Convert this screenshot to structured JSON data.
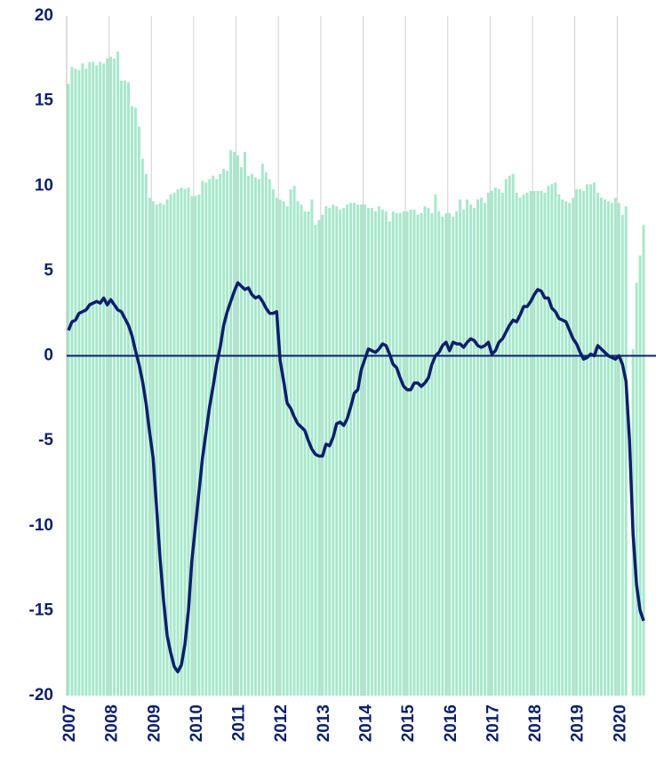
{
  "chart_data": {
    "type": "bar_line",
    "categories": [
      "2007",
      null,
      null,
      null,
      null,
      null,
      null,
      null,
      null,
      null,
      null,
      null,
      "2008",
      null,
      null,
      null,
      null,
      null,
      null,
      null,
      null,
      null,
      null,
      null,
      "2009",
      null,
      null,
      null,
      null,
      null,
      null,
      null,
      null,
      null,
      null,
      null,
      "2010",
      null,
      null,
      null,
      null,
      null,
      null,
      null,
      null,
      null,
      null,
      null,
      "2011",
      null,
      null,
      null,
      null,
      null,
      null,
      null,
      null,
      null,
      null,
      null,
      "2012",
      null,
      null,
      null,
      null,
      null,
      null,
      null,
      null,
      null,
      null,
      null,
      "2013",
      null,
      null,
      null,
      null,
      null,
      null,
      null,
      null,
      null,
      null,
      null,
      "2014",
      null,
      null,
      null,
      null,
      null,
      null,
      null,
      null,
      null,
      null,
      null,
      "2015",
      null,
      null,
      null,
      null,
      null,
      null,
      null,
      null,
      null,
      null,
      null,
      "2016",
      null,
      null,
      null,
      null,
      null,
      null,
      null,
      null,
      null,
      null,
      null,
      "2017",
      null,
      null,
      null,
      null,
      null,
      null,
      null,
      null,
      null,
      null,
      null,
      "2018",
      null,
      null,
      null,
      null,
      null,
      null,
      null,
      null,
      null,
      null,
      null,
      "2019",
      null,
      null,
      null,
      null,
      null,
      null,
      null,
      null,
      null,
      null,
      null,
      "2020",
      null,
      null,
      null,
      null,
      null,
      null,
      null
    ],
    "series": [
      {
        "type": "bar",
        "color": "#a6e8cb",
        "values": [
          16.0,
          17.0,
          16.9,
          16.8,
          17.2,
          16.9,
          17.3,
          17.3,
          17.1,
          17.3,
          17.2,
          17.5,
          17.6,
          17.5,
          17.9,
          16.2,
          16.2,
          16.1,
          14.7,
          14.6,
          13.5,
          11.6,
          10.7,
          9.3,
          9.1,
          8.9,
          9.0,
          8.9,
          9.2,
          9.5,
          9.6,
          9.8,
          9.9,
          9.8,
          9.9,
          9.4,
          9.4,
          9.5,
          10.3,
          10.2,
          10.4,
          10.6,
          10.4,
          10.7,
          11.0,
          10.9,
          12.1,
          12.0,
          11.8,
          11.1,
          12.0,
          10.6,
          10.7,
          10.5,
          10.4,
          11.3,
          10.8,
          10.4,
          9.8,
          9.3,
          9.2,
          9.1,
          8.8,
          9.8,
          10.0,
          9.1,
          8.9,
          8.5,
          8.5,
          9.2,
          7.7,
          8.0,
          8.3,
          8.8,
          8.7,
          8.9,
          8.8,
          8.6,
          8.7,
          8.9,
          9.0,
          9.0,
          8.9,
          8.9,
          8.9,
          8.7,
          8.7,
          8.5,
          8.8,
          8.6,
          8.5,
          7.9,
          8.5,
          8.4,
          8.4,
          8.5,
          8.5,
          8.6,
          8.6,
          8.3,
          8.4,
          8.8,
          8.7,
          8.4,
          9.5,
          8.5,
          8.2,
          8.4,
          8.4,
          8.2,
          8.5,
          9.2,
          8.6,
          9.2,
          8.9,
          8.7,
          9.2,
          9.3,
          9.0,
          9.6,
          9.7,
          9.9,
          9.8,
          9.6,
          10.4,
          10.6,
          10.7,
          9.6,
          9.3,
          9.5,
          9.6,
          9.7,
          9.7,
          9.7,
          9.7,
          9.6,
          10.0,
          10.1,
          10.2,
          9.5,
          9.2,
          9.1,
          9.0,
          9.3,
          9.8,
          9.8,
          9.7,
          10.1,
          10.1,
          10.2,
          9.6,
          9.3,
          9.2,
          9.1,
          9.0,
          9.3,
          9.0,
          8.3,
          8.8,
          null,
          0.4,
          4.3,
          5.9,
          7.7
        ]
      },
      {
        "type": "line",
        "color": "#0c1f6b",
        "values": [
          1.5,
          2.0,
          2.1,
          2.5,
          2.6,
          2.7,
          3.0,
          3.1,
          3.2,
          3.1,
          3.4,
          3.0,
          3.3,
          3.0,
          2.7,
          2.6,
          2.2,
          1.8,
          1.2,
          0.3,
          -0.5,
          -1.5,
          -2.8,
          -4.5,
          -6.0,
          -9.0,
          -12.0,
          -14.5,
          -16.5,
          -17.5,
          -18.3,
          -18.6,
          -18.2,
          -17.0,
          -15.0,
          -12.0,
          -10.0,
          -8.0,
          -6.0,
          -4.5,
          -3.0,
          -1.8,
          -0.5,
          0.5,
          1.8,
          2.6,
          3.2,
          3.8,
          4.3,
          4.1,
          3.9,
          4.0,
          3.6,
          3.4,
          3.5,
          3.2,
          2.8,
          2.5,
          2.5,
          2.6,
          -0.3,
          -1.5,
          -2.8,
          -3.1,
          -3.6,
          -4.0,
          -4.2,
          -4.4,
          -5.0,
          -5.5,
          -5.8,
          -5.9,
          -5.9,
          -5.2,
          -5.3,
          -4.8,
          -4.0,
          -3.9,
          -4.1,
          -3.7,
          -3.0,
          -2.2,
          -2.0,
          -0.8,
          -0.2,
          0.4,
          0.3,
          0.2,
          0.4,
          0.7,
          0.6,
          0.1,
          -0.5,
          -0.7,
          -1.3,
          -1.8,
          -2.0,
          -2.0,
          -1.6,
          -1.6,
          -1.8,
          -1.6,
          -1.3,
          -0.5,
          0.0,
          0.2,
          0.6,
          0.8,
          0.3,
          0.8,
          0.7,
          0.7,
          0.5,
          0.8,
          1.0,
          0.9,
          0.6,
          0.5,
          0.6,
          0.8,
          0.1,
          0.3,
          0.8,
          1.0,
          1.4,
          1.8,
          2.1,
          2.0,
          2.4,
          2.9,
          2.9,
          3.2,
          3.6,
          3.9,
          3.8,
          3.4,
          3.4,
          2.8,
          2.6,
          2.2,
          2.1,
          2.0,
          1.5,
          1.0,
          0.7,
          0.2,
          -0.2,
          -0.1,
          0.1,
          0.0,
          0.6,
          0.4,
          0.2,
          0.0,
          -0.1,
          -0.2,
          0.0,
          -0.5,
          -1.5,
          -5.0,
          -10.5,
          -13.5,
          -15.0,
          -15.6
        ]
      }
    ],
    "ylim": [
      -20,
      20
    ],
    "yticks": [
      20,
      15,
      10,
      5,
      0,
      -5,
      -10,
      -15,
      -20
    ],
    "xgrid": true,
    "zero_line": true
  }
}
